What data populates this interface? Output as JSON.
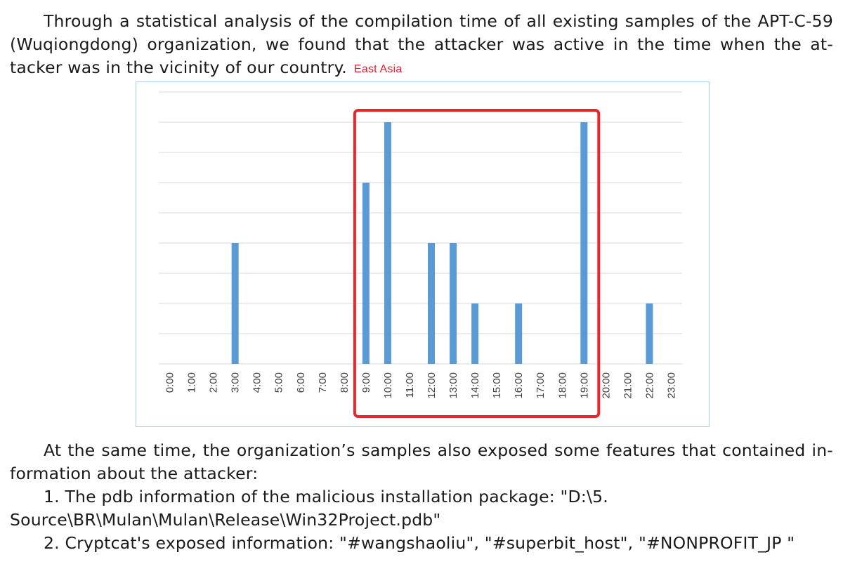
{
  "document": {
    "paragraph1": {
      "lines": [
        "Through a statistical analysis of the compilation time of all existing samples of the APT-C-59",
        "(Wuqiongdong) organization, we found that the attacker was active in the time when the at-",
        "tacker was in the vicinity of our country."
      ],
      "annotation": "East Asia"
    },
    "paragraph2": {
      "lines": [
        "At the same time, the organization’s samples also exposed some features that contained in-",
        "formation about the attacker:",
        "1. The pdb information of the malicious installation package: \"D:\\5.",
        "Source\\BR\\Mulan\\Mulan\\Release\\Win32Project.pdb\"",
        "2. Cryptcat's exposed information: \"#wangshaoliu\", \"#superbit_host\", \"#NONPROFIT_JP \""
      ]
    }
  },
  "colors": {
    "bar": "#5b9bd5",
    "highlight": "#e8262b",
    "grid": "#d9d9d9"
  },
  "chart_data": {
    "type": "bar",
    "categories": [
      "0:00",
      "1:00",
      "2:00",
      "3:00",
      "4:00",
      "5:00",
      "6:00",
      "7:00",
      "8:00",
      "9:00",
      "10:00",
      "11:00",
      "12:00",
      "13:00",
      "14:00",
      "15:00",
      "16:00",
      "17:00",
      "18:00",
      "19:00",
      "20:00",
      "21:00",
      "22:00",
      "23:00"
    ],
    "values": [
      0,
      0,
      0,
      4,
      0,
      0,
      0,
      0,
      0,
      6,
      8,
      0,
      4,
      4,
      2,
      0,
      2,
      0,
      0,
      8,
      0,
      0,
      2,
      0
    ],
    "ylim": [
      0,
      9
    ],
    "grid": true,
    "highlight_range": [
      "9:00",
      "19:00"
    ]
  }
}
